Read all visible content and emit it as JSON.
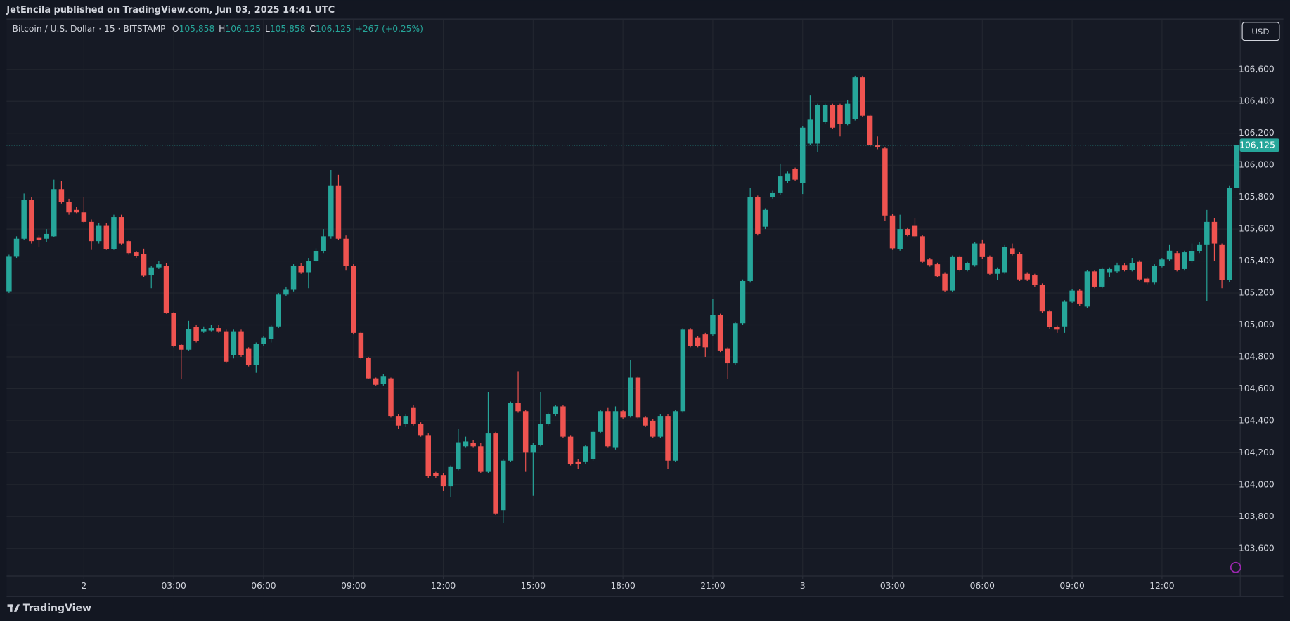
{
  "publisher_line": "JetEncila published on TradingView.com, Jun 03, 2025 14:41 UTC",
  "currency_button": "USD",
  "brand": "TradingView",
  "chart_data": {
    "type": "candlestick",
    "symbol": "Bitcoin / U.S. Dollar · 15 · BITSTAMP",
    "ohlc_legend": [
      {
        "key": "O",
        "value": "105,858"
      },
      {
        "key": "H",
        "value": "106,125"
      },
      {
        "key": "L",
        "value": "105,858"
      },
      {
        "key": "C",
        "value": "106,125"
      }
    ],
    "change": "+267 (+0.25%)",
    "up_color": "#26a69a",
    "down_color": "#ef5350",
    "grid": true,
    "ylim": [
      103430,
      106910
    ],
    "yticks": [
      {
        "value": 103600,
        "label": "103,600"
      },
      {
        "value": 103800,
        "label": "103,800"
      },
      {
        "value": 104000,
        "label": "104,000"
      },
      {
        "value": 104200,
        "label": "104,200"
      },
      {
        "value": 104400,
        "label": "104,400"
      },
      {
        "value": 104600,
        "label": "104,600"
      },
      {
        "value": 104800,
        "label": "104,800"
      },
      {
        "value": 105000,
        "label": "105,000"
      },
      {
        "value": 105200,
        "label": "105,200"
      },
      {
        "value": 105400,
        "label": "105,400"
      },
      {
        "value": 105600,
        "label": "105,600"
      },
      {
        "value": 105800,
        "label": "105,800"
      },
      {
        "value": 106000,
        "label": "106,000"
      },
      {
        "value": 106200,
        "label": "106,200"
      },
      {
        "value": 106400,
        "label": "106,400"
      },
      {
        "value": 106600,
        "label": "106,600"
      }
    ],
    "last_price": {
      "value": 106125,
      "label": "106,125"
    },
    "categories": [
      null,
      null,
      null,
      null,
      null,
      null,
      null,
      null,
      null,
      null,
      "2",
      null,
      null,
      null,
      null,
      null,
      null,
      null,
      null,
      null,
      null,
      null,
      "03:00",
      null,
      null,
      null,
      null,
      null,
      null,
      null,
      null,
      null,
      null,
      null,
      "06:00",
      null,
      null,
      null,
      null,
      null,
      null,
      null,
      null,
      null,
      null,
      null,
      "09:00",
      null,
      null,
      null,
      null,
      null,
      null,
      null,
      null,
      null,
      null,
      null,
      "12:00",
      null,
      null,
      null,
      null,
      null,
      null,
      null,
      null,
      null,
      null,
      null,
      "15:00",
      null,
      null,
      null,
      null,
      null,
      null,
      null,
      null,
      null,
      null,
      null,
      "18:00",
      null,
      null,
      null,
      null,
      null,
      null,
      null,
      null,
      null,
      null,
      null,
      "21:00",
      null,
      null,
      null,
      null,
      null,
      null,
      null,
      null,
      null,
      null,
      null,
      "3",
      null,
      null,
      null,
      null,
      null,
      null,
      null,
      null,
      null,
      null,
      null,
      "03:00",
      null,
      null,
      null,
      null,
      null,
      null,
      null,
      null,
      null,
      null,
      null,
      "06:00",
      null,
      null,
      null,
      null,
      null,
      null,
      null,
      null,
      null,
      null,
      null,
      "09:00",
      null,
      null,
      null,
      null,
      null,
      null,
      null,
      null,
      null,
      null,
      null,
      "12:00",
      null,
      null,
      null,
      null,
      null,
      null,
      null,
      null,
      null,
      null
    ],
    "open": [
      105211,
      105427,
      105540,
      105782,
      105545,
      105540,
      105555,
      105850,
      105770,
      105720,
      105705,
      105645,
      105525,
      105620,
      105475,
      105675,
      105525,
      105455,
      105445,
      105310,
      105360,
      105370,
      105075,
      104875,
      104845,
      104985,
      104960,
      104965,
      104980,
      104960,
      104810,
      104960,
      104850,
      104750,
      104880,
      104910,
      104990,
      105190,
      105220,
      105370,
      105330,
      105400,
      105460,
      105555,
      105870,
      105540,
      105370,
      104950,
      104795,
      104665,
      104630,
      104665,
      104430,
      104380,
      104480,
      104380,
      104310,
      104070,
      104060,
      103990,
      104100,
      104240,
      104260,
      104240,
      104080,
      104320,
      103840,
      104150,
      104510,
      104460,
      104200,
      104250,
      104380,
      104440,
      104490,
      104300,
      104145,
      104145,
      104160,
      104330,
      104460,
      104230,
      104460,
      104430,
      104670,
      104420,
      104400,
      104300,
      104430,
      104150,
      104460,
      104970,
      104920,
      104940,
      104940,
      105060,
      104850,
      104760,
      105010,
      105275,
      105800,
      105615,
      105800,
      105825,
      105900,
      105975,
      105890,
      106135,
      106135,
      106270,
      106375,
      106375,
      106260,
      106290,
      106550,
      106310,
      106125,
      106105,
      105685,
      105475,
      105600,
      105620,
      105555,
      105410,
      105380,
      105320,
      105215,
      105425,
      105345,
      105375,
      105510,
      105425,
      105320,
      105330,
      105480,
      105445,
      105320,
      105310,
      105250,
      105085,
      104985,
      104990,
      105145,
      105215,
      105115,
      105335,
      105240,
      105330,
      105335,
      105375,
      105345,
      105395,
      105290,
      105265,
      105370,
      105410,
      105450,
      105350,
      105400,
      105460,
      105500,
      105645,
      105500,
      105280,
      105858
    ],
    "high": [
      105440,
      105555,
      105823,
      105800,
      105560,
      105600,
      105910,
      105900,
      105790,
      105740,
      105800,
      105660,
      105640,
      105640,
      105690,
      105690,
      105530,
      105460,
      105478,
      105370,
      105400,
      105385,
      105080,
      104880,
      105025,
      105000,
      104990,
      105000,
      105000,
      104970,
      104970,
      104970,
      104860,
      104890,
      104930,
      105000,
      105200,
      105240,
      105380,
      105385,
      105420,
      105480,
      105600,
      105970,
      105940,
      105560,
      105380,
      104960,
      104800,
      104670,
      104690,
      104670,
      104440,
      104440,
      104500,
      104390,
      104320,
      104080,
      104070,
      104120,
      104350,
      104300,
      104280,
      104260,
      104580,
      104330,
      104160,
      104520,
      104710,
      104470,
      104260,
      104580,
      104450,
      104500,
      104500,
      104310,
      104160,
      104250,
      104340,
      104470,
      104480,
      104490,
      104470,
      104780,
      104680,
      104430,
      104410,
      104440,
      104440,
      104470,
      104980,
      104980,
      104930,
      104950,
      105165,
      105070,
      104860,
      105020,
      105285,
      105860,
      105810,
      105730,
      105840,
      106010,
      105960,
      105985,
      106245,
      106440,
      106385,
      106385,
      106385,
      106385,
      106410,
      106560,
      106560,
      106320,
      106180,
      106115,
      105695,
      105690,
      105610,
      105670,
      105565,
      105420,
      105390,
      105330,
      105435,
      105435,
      105395,
      105520,
      105535,
      105435,
      105360,
      105500,
      105510,
      105455,
      105330,
      105320,
      105260,
      105095,
      104995,
      105155,
      105225,
      105225,
      105345,
      105345,
      105360,
      105360,
      105390,
      105385,
      105420,
      105405,
      105300,
      105380,
      105420,
      105500,
      105460,
      105465,
      105510,
      105520,
      105720,
      105670,
      105510,
      105870,
      106125
    ],
    "low": [
      105200,
      105420,
      105530,
      105510,
      105490,
      105520,
      105550,
      105760,
      105690,
      105700,
      105640,
      105470,
      105510,
      105470,
      105470,
      105500,
      105440,
      105420,
      105300,
      105230,
      105350,
      105070,
      104860,
      104660,
      104840,
      104890,
      104950,
      104960,
      104950,
      104760,
      104790,
      104800,
      104740,
      104700,
      104870,
      104890,
      104980,
      105180,
      105210,
      105320,
      105230,
      105395,
      105450,
      105540,
      105530,
      105340,
      104940,
      104785,
      104660,
      104620,
      104620,
      104420,
      104350,
      104360,
      104370,
      104300,
      104040,
      104040,
      103960,
      103920,
      104090,
      104230,
      104230,
      104070,
      104070,
      103810,
      103760,
      104140,
      104450,
      104080,
      103930,
      104240,
      104370,
      104430,
      104290,
      104120,
      104100,
      104130,
      104150,
      104320,
      104230,
      104220,
      104410,
      104420,
      104410,
      104360,
      104290,
      104290,
      104100,
      104140,
      104450,
      104860,
      104860,
      104800,
      104930,
      104830,
      104660,
      104750,
      105000,
      105265,
      105560,
      105600,
      105790,
      105815,
      105890,
      105900,
      105820,
      106125,
      106080,
      106260,
      106225,
      106180,
      106250,
      106280,
      106300,
      106115,
      106100,
      105650,
      105470,
      105465,
      105555,
      105545,
      105385,
      105365,
      105300,
      105205,
      105205,
      105335,
      105335,
      105365,
      105415,
      105310,
      105280,
      105320,
      105435,
      105275,
      105275,
      105240,
      105075,
      104975,
      104950,
      104950,
      105135,
      105120,
      105105,
      105230,
      105230,
      105300,
      105325,
      105335,
      105335,
      105275,
      105255,
      105255,
      105360,
      105400,
      105335,
      105340,
      105390,
      105450,
      105150,
      105400,
      105230,
      105270,
      105858
    ],
    "close": [
      105427,
      105540,
      105782,
      105525,
      105530,
      105570,
      105850,
      105770,
      105705,
      105705,
      105645,
      105525,
      105620,
      105475,
      105675,
      105510,
      105450,
      105430,
      105308,
      105360,
      105380,
      105075,
      104870,
      104845,
      104975,
      104900,
      104975,
      104980,
      104960,
      104770,
      104960,
      104810,
      104750,
      104880,
      104920,
      104990,
      105190,
      105220,
      105370,
      105330,
      105400,
      105460,
      105555,
      105870,
      105540,
      105370,
      104950,
      104795,
      104665,
      104625,
      104680,
      104430,
      104370,
      104430,
      104380,
      104310,
      104055,
      104055,
      103990,
      104110,
      104265,
      104270,
      104240,
      104080,
      104320,
      103820,
      104150,
      104510,
      104460,
      104200,
      104250,
      104380,
      104440,
      104490,
      104300,
      104130,
      104130,
      104240,
      104330,
      104460,
      104240,
      104460,
      104420,
      104670,
      104420,
      104370,
      104300,
      104430,
      104150,
      104460,
      104970,
      104870,
      104870,
      104860,
      105060,
      104840,
      104760,
      105010,
      105275,
      105800,
      105570,
      105720,
      105825,
      105930,
      105950,
      105910,
      106235,
      106285,
      106375,
      106375,
      106235,
      106260,
      106385,
      106550,
      106310,
      106125,
      106115,
      105685,
      105480,
      105600,
      105565,
      105555,
      105395,
      105375,
      105305,
      105215,
      105425,
      105345,
      105385,
      105510,
      105425,
      105320,
      105350,
      105490,
      105445,
      105285,
      105285,
      105250,
      105085,
      104985,
      104970,
      105145,
      105215,
      105130,
      105335,
      105240,
      105350,
      105350,
      105375,
      105345,
      105385,
      105285,
      105265,
      105370,
      105410,
      105465,
      105345,
      105455,
      105460,
      105500,
      105645,
      105510,
      105280,
      105860,
      106125
    ]
  }
}
